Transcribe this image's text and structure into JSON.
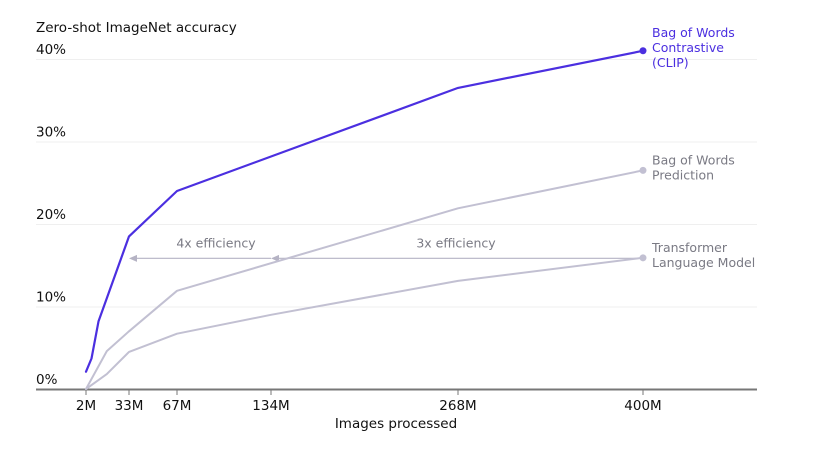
{
  "chart_data": {
    "type": "line",
    "title": "",
    "ylabel": "Zero-shot ImageNet accuracy",
    "xlabel": "Images processed",
    "ylim": [
      0,
      40
    ],
    "yticks": [
      "0%",
      "10%",
      "20%",
      "30%",
      "40%"
    ],
    "ytick_values": [
      0,
      10,
      20,
      30,
      40
    ],
    "xticks": [
      "2M",
      "33M",
      "67M",
      "134M",
      "268M",
      "400M"
    ],
    "xtick_values": [
      2,
      33,
      67,
      134,
      268,
      400
    ],
    "grid": "horizontal",
    "legend_position": "inline-right",
    "series": [
      {
        "name": "Bag of Words Contrastive (CLIP)",
        "label_lines": [
          "Bag of Words",
          "Contrastive",
          "(CLIP)"
        ],
        "color": "#4b2fe0",
        "points": [
          [
            2,
            2.1
          ],
          [
            6,
            3.7
          ],
          [
            11,
            8.2
          ],
          [
            33,
            18.5
          ],
          [
            67,
            24.0
          ],
          [
            268,
            36.5
          ],
          [
            400,
            41.0
          ]
        ]
      },
      {
        "name": "Bag of Words Prediction",
        "label_lines": [
          "Bag of Words",
          "Prediction"
        ],
        "color": "#c2c0d2",
        "points": [
          [
            2,
            0.0
          ],
          [
            17,
            4.6
          ],
          [
            33,
            7.0
          ],
          [
            67,
            11.9
          ],
          [
            268,
            21.9
          ],
          [
            400,
            26.5
          ]
        ]
      },
      {
        "name": "Transformer Language Model",
        "label_lines": [
          "Transformer",
          "Language Model"
        ],
        "color": "#c2c0d2",
        "points": [
          [
            2,
            0.0
          ],
          [
            17,
            1.8
          ],
          [
            33,
            4.5
          ],
          [
            67,
            6.7
          ],
          [
            134,
            9.0
          ],
          [
            268,
            13.1
          ],
          [
            400,
            15.9
          ]
        ]
      }
    ],
    "annotations": [
      {
        "text": "4x efficiency",
        "arrow_from_x": 134,
        "arrow_to_x": 33,
        "y": 15.9
      },
      {
        "text": "3x efficiency",
        "arrow_from_x": 400,
        "arrow_to_x": 134,
        "y": 15.9
      }
    ]
  }
}
